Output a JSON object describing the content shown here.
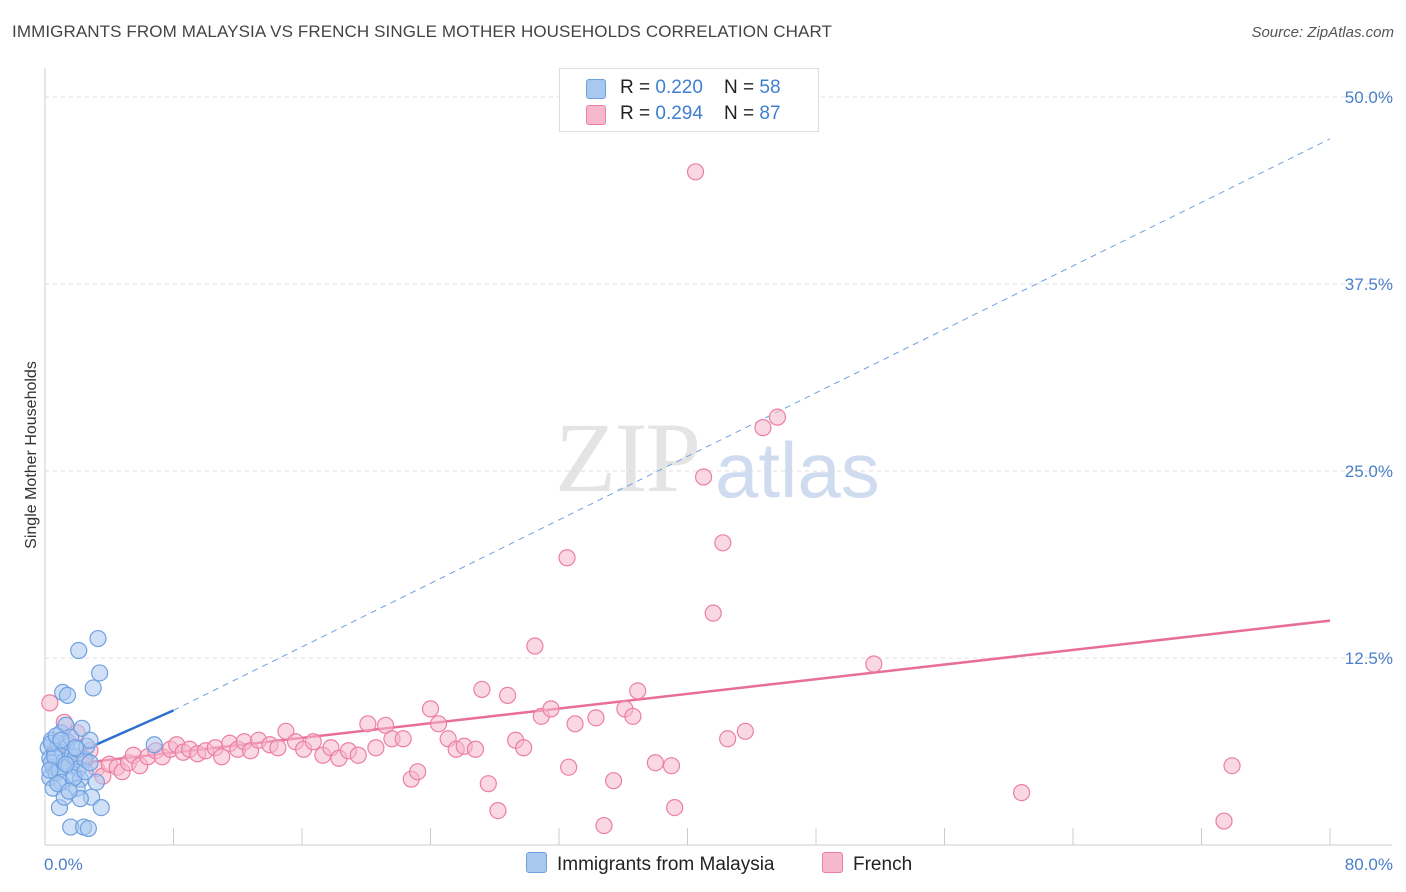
{
  "header": {
    "title": "IMMIGRANTS FROM MALAYSIA VS FRENCH SINGLE MOTHER HOUSEHOLDS CORRELATION CHART",
    "source": "Source: ZipAtlas.com"
  },
  "watermark": {
    "zip": "ZIP",
    "atlas": "atlas"
  },
  "legend": {
    "rows": [
      {
        "r_label": "R = ",
        "r_value": "0.220",
        "n_label": "N = ",
        "n_value": "58",
        "color": "#a9c8f0"
      },
      {
        "r_label": "R = ",
        "r_value": "0.294",
        "n_label": "N = ",
        "n_value": "87",
        "color": "#f6b8cc"
      }
    ]
  },
  "chart_data": {
    "type": "scatter",
    "title": "IMMIGRANTS FROM MALAYSIA VS FRENCH SINGLE MOTHER HOUSEHOLDS CORRELATION CHART",
    "xlabel": "",
    "ylabel": "Single Mother Households",
    "xlim": [
      0,
      80
    ],
    "ylim": [
      0,
      52
    ],
    "x_tick_labels": [
      "0.0%",
      "80.0%"
    ],
    "y_ticks": [
      12.5,
      25.0,
      37.5,
      50.0
    ],
    "y_tick_labels": [
      "12.5%",
      "25.0%",
      "37.5%",
      "50.0%"
    ],
    "grid": true,
    "legend_position": "top-center",
    "series": [
      {
        "name": "Immigrants from Malaysia",
        "color": "#6fa0e0",
        "fill": "#a9c8f0",
        "points": [
          [
            0.2,
            6.5
          ],
          [
            0.3,
            5.8
          ],
          [
            0.4,
            7.0
          ],
          [
            0.3,
            4.5
          ],
          [
            0.5,
            5.2
          ],
          [
            0.6,
            6.1
          ],
          [
            0.4,
            5.5
          ],
          [
            0.7,
            4.8
          ],
          [
            0.8,
            6.8
          ],
          [
            0.9,
            5.0
          ],
          [
            1.0,
            7.5
          ],
          [
            1.1,
            6.2
          ],
          [
            1.2,
            5.6
          ],
          [
            1.0,
            4.2
          ],
          [
            1.3,
            8.0
          ],
          [
            1.4,
            6.9
          ],
          [
            1.5,
            5.3
          ],
          [
            1.6,
            7.2
          ],
          [
            1.7,
            6.0
          ],
          [
            1.8,
            4.7
          ],
          [
            1.9,
            5.9
          ],
          [
            2.0,
            6.4
          ],
          [
            2.1,
            5.1
          ],
          [
            2.2,
            4.4
          ],
          [
            2.3,
            7.8
          ],
          [
            2.5,
            5.7
          ],
          [
            2.6,
            6.6
          ],
          [
            2.8,
            7.0
          ],
          [
            0.5,
            3.8
          ],
          [
            0.9,
            2.5
          ],
          [
            1.2,
            3.2
          ],
          [
            1.6,
            1.2
          ],
          [
            2.0,
            3.8
          ],
          [
            2.4,
            1.2
          ],
          [
            2.7,
            1.1
          ],
          [
            2.9,
            3.2
          ],
          [
            3.2,
            4.2
          ],
          [
            3.5,
            2.5
          ],
          [
            1.1,
            10.2
          ],
          [
            1.4,
            10.0
          ],
          [
            2.1,
            13.0
          ],
          [
            3.0,
            10.5
          ],
          [
            3.3,
            13.8
          ],
          [
            3.4,
            11.5
          ],
          [
            1.8,
            4.5
          ],
          [
            2.2,
            3.1
          ],
          [
            0.6,
            5.9
          ],
          [
            0.8,
            4.1
          ],
          [
            1.5,
            3.6
          ],
          [
            1.3,
            5.4
          ],
          [
            2.5,
            4.9
          ],
          [
            0.4,
            6.8
          ],
          [
            0.7,
            7.3
          ],
          [
            1.9,
            6.5
          ],
          [
            0.3,
            5.0
          ],
          [
            2.8,
            5.5
          ],
          [
            6.8,
            6.7
          ],
          [
            1.0,
            7.0
          ]
        ],
        "trend": {
          "x": [
            0,
            8
          ],
          "y": [
            5.2,
            9.0
          ],
          "extended_to": [
            80,
            47.2
          ]
        }
      },
      {
        "name": "French",
        "color": "#ec7fa2",
        "fill": "#f6b8cc",
        "points": [
          [
            0.3,
            9.5
          ],
          [
            1.2,
            8.2
          ],
          [
            1.6,
            6.0
          ],
          [
            2.0,
            7.5
          ],
          [
            2.4,
            5.8
          ],
          [
            2.8,
            6.3
          ],
          [
            3.2,
            5.1
          ],
          [
            3.6,
            4.6
          ],
          [
            4.0,
            5.4
          ],
          [
            4.5,
            5.2
          ],
          [
            4.8,
            4.9
          ],
          [
            5.2,
            5.5
          ],
          [
            5.5,
            6.0
          ],
          [
            5.9,
            5.3
          ],
          [
            6.4,
            5.9
          ],
          [
            6.9,
            6.3
          ],
          [
            7.3,
            5.9
          ],
          [
            7.8,
            6.4
          ],
          [
            8.2,
            6.7
          ],
          [
            8.6,
            6.2
          ],
          [
            9.0,
            6.4
          ],
          [
            9.5,
            6.1
          ],
          [
            10.0,
            6.3
          ],
          [
            10.6,
            6.5
          ],
          [
            11.0,
            5.9
          ],
          [
            11.5,
            6.8
          ],
          [
            12.0,
            6.4
          ],
          [
            12.4,
            6.9
          ],
          [
            12.8,
            6.3
          ],
          [
            13.3,
            7.0
          ],
          [
            14.0,
            6.7
          ],
          [
            14.5,
            6.5
          ],
          [
            15.0,
            7.6
          ],
          [
            15.6,
            6.9
          ],
          [
            16.1,
            6.4
          ],
          [
            16.7,
            6.9
          ],
          [
            17.3,
            6.0
          ],
          [
            17.8,
            6.5
          ],
          [
            18.3,
            5.8
          ],
          [
            18.9,
            6.3
          ],
          [
            19.5,
            6.0
          ],
          [
            20.1,
            8.1
          ],
          [
            20.6,
            6.5
          ],
          [
            21.2,
            8.0
          ],
          [
            21.6,
            7.1
          ],
          [
            22.3,
            7.1
          ],
          [
            22.8,
            4.4
          ],
          [
            23.2,
            4.9
          ],
          [
            24.0,
            9.1
          ],
          [
            24.5,
            8.1
          ],
          [
            25.1,
            7.1
          ],
          [
            25.6,
            6.4
          ],
          [
            26.1,
            6.6
          ],
          [
            26.8,
            6.4
          ],
          [
            27.2,
            10.4
          ],
          [
            27.6,
            4.1
          ],
          [
            28.2,
            2.3
          ],
          [
            28.8,
            10.0
          ],
          [
            29.3,
            7.0
          ],
          [
            29.8,
            6.5
          ],
          [
            30.5,
            13.3
          ],
          [
            30.9,
            8.6
          ],
          [
            31.5,
            9.1
          ],
          [
            32.5,
            19.2
          ],
          [
            32.6,
            5.2
          ],
          [
            33.0,
            8.1
          ],
          [
            34.3,
            8.5
          ],
          [
            34.8,
            1.3
          ],
          [
            35.4,
            4.3
          ],
          [
            36.1,
            9.1
          ],
          [
            36.6,
            8.6
          ],
          [
            36.9,
            10.3
          ],
          [
            38.0,
            5.5
          ],
          [
            39.0,
            5.3
          ],
          [
            39.2,
            2.5
          ],
          [
            40.5,
            45.0
          ],
          [
            41.0,
            24.6
          ],
          [
            41.6,
            15.5
          ],
          [
            42.2,
            20.2
          ],
          [
            42.5,
            7.1
          ],
          [
            43.6,
            7.6
          ],
          [
            44.7,
            27.9
          ],
          [
            45.6,
            28.6
          ],
          [
            51.6,
            12.1
          ],
          [
            60.8,
            3.5
          ],
          [
            73.4,
            1.6
          ],
          [
            73.9,
            5.3
          ]
        ],
        "trend": {
          "x": [
            0,
            80
          ],
          "y": [
            5.2,
            15.0
          ]
        }
      }
    ]
  },
  "bottom_legend": {
    "items": [
      {
        "label": "Immigrants from Malaysia",
        "color": "#a9c8f0"
      },
      {
        "label": "French",
        "color": "#f6b8cc"
      }
    ]
  }
}
